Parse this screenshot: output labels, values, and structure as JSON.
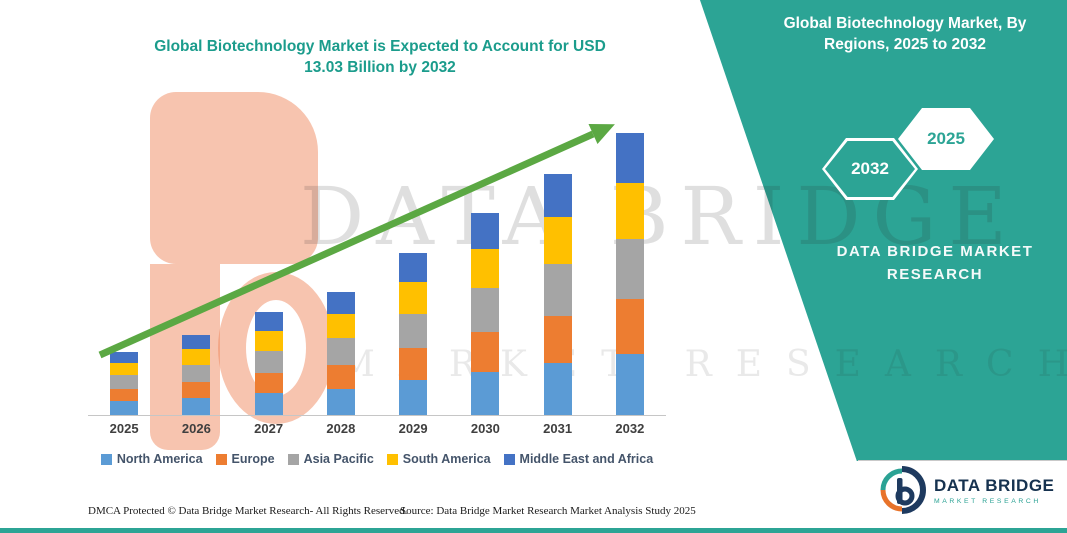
{
  "header": {
    "title_lines": [
      "Global Biotechnology Market is Expected to Account for USD",
      "13.03 Billion by 2032"
    ]
  },
  "right_panel": {
    "title_lines": [
      "Global Biotechnology Market, By",
      "Regions, 2025 to 2032"
    ],
    "hexagon_back_label": "2032",
    "hexagon_front_label": "2025",
    "brand_line1": "DATA BRIDGE MARKET",
    "brand_line2": "RESEARCH"
  },
  "watermark": {
    "primary": "DATA BRIDGE",
    "secondary": "MARKET RESEARCH"
  },
  "chart_data": {
    "type": "bar",
    "stacked": true,
    "title": "Global Biotechnology Market is Expected to Account for USD 13.03 Billion by 2032",
    "units": "USD Billion (values estimated from bar heights; 2032 total given as 13.03)",
    "categories": [
      "2025",
      "2026",
      "2027",
      "2028",
      "2029",
      "2030",
      "2031",
      "2032"
    ],
    "series": [
      {
        "name": "North America",
        "color": "#5B9BD5",
        "values": [
          0.63,
          0.8,
          1.02,
          1.22,
          1.61,
          2.01,
          2.39,
          2.8
        ]
      },
      {
        "name": "Europe",
        "color": "#ED7D31",
        "values": [
          0.57,
          0.73,
          0.93,
          1.11,
          1.47,
          1.83,
          2.18,
          2.55
        ]
      },
      {
        "name": "Asia Pacific",
        "color": "#A5A5A5",
        "values": [
          0.63,
          0.8,
          1.02,
          1.22,
          1.61,
          2.01,
          2.39,
          2.8
        ]
      },
      {
        "name": "South America",
        "color": "#FFC000",
        "values": [
          0.57,
          0.73,
          0.93,
          1.11,
          1.47,
          1.83,
          2.18,
          2.55
        ]
      },
      {
        "name": "Middle East and Africa",
        "color": "#4472C4",
        "values": [
          0.52,
          0.66,
          0.85,
          1.01,
          1.33,
          1.66,
          1.98,
          2.33
        ]
      }
    ],
    "totals": [
      2.92,
      3.72,
      4.75,
      5.67,
      7.49,
      9.34,
      11.12,
      13.03
    ],
    "xlabel": "",
    "ylabel": "",
    "ylim": [
      0,
      14
    ],
    "y_axis_visible": false,
    "grid": false,
    "legend_position": "bottom",
    "annotations": [
      "thick green upward trend arrow drawn across the bars from lower-left to upper-right"
    ]
  },
  "footer": {
    "dmca": "DMCA Protected © Data Bridge Market Research-  All Rights Reserved.",
    "source": "Source: Data Bridge Market Research  Market Analysis Study 2025"
  },
  "logo": {
    "title": "DATA BRIDGE",
    "subtitle": "MARKET RESEARCH"
  },
  "colors": {
    "teal_band": "#2CA495",
    "title_teal": "#1B9C8C",
    "trend_arrow_green": "#5BA843",
    "logo_navy": "#16324F",
    "logo_orange": "#E8732A",
    "watermark_orange": "#F08A5F"
  }
}
